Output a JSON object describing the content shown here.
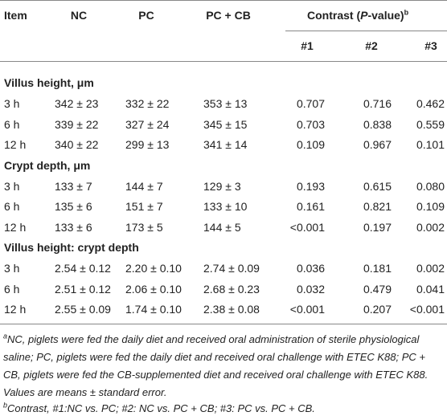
{
  "header": {
    "item": "Item",
    "columns": [
      "NC",
      "PC",
      "PC + CB"
    ],
    "contrast": {
      "parts": [
        "Contrast (",
        "P",
        "-value)"
      ],
      "note": "b"
    },
    "contrast_columns": [
      "#1",
      "#2",
      "#3"
    ]
  },
  "sections": [
    {
      "title": "Villus height, μm",
      "rows": [
        [
          "3 h",
          "342 ± 23",
          "332 ± 22",
          "353 ± 13",
          "0.707",
          "0.716",
          "0.462"
        ],
        [
          "6 h",
          "339 ± 22",
          "327 ± 24",
          "345 ± 15",
          "0.703",
          "0.838",
          "0.559"
        ],
        [
          "12 h",
          "340 ± 22",
          "299 ± 13",
          "341 ± 14",
          "0.109",
          "0.967",
          "0.101"
        ]
      ]
    },
    {
      "title": "Crypt depth, μm",
      "rows": [
        [
          "3 h",
          "133 ± 7",
          "144 ± 7",
          "129 ± 3",
          "0.193",
          "0.615",
          "0.080"
        ],
        [
          "6 h",
          "135 ± 6",
          "151 ± 7",
          "133 ± 10",
          "0.161",
          "0.821",
          "0.109"
        ],
        [
          "12 h",
          "133 ± 6",
          "173 ± 5",
          "144 ± 5",
          "<0.001",
          "0.197",
          "0.002"
        ]
      ]
    },
    {
      "title": "Villus height: crypt depth",
      "rows": [
        [
          "3 h",
          "2.54 ± 0.12",
          "2.20 ± 0.10",
          "2.74 ± 0.09",
          "0.036",
          "0.181",
          "0.002"
        ],
        [
          "6 h",
          "2.51 ± 0.12",
          "2.06 ± 0.10",
          "2.68 ± 0.23",
          "0.032",
          "0.479",
          "0.041"
        ],
        [
          "12 h",
          "2.55 ± 0.09",
          "1.74 ± 0.10",
          "2.38 ± 0.08",
          "<0.001",
          "0.207",
          "<0.001"
        ]
      ]
    }
  ],
  "footnotes": [
    {
      "mark": "a",
      "text": "NC, piglets were fed the daily diet and received oral administration of sterile physiological saline; PC, piglets were fed the daily diet and received oral challenge with ETEC K88; PC + CB, piglets were fed the CB-supplemented diet and received oral challenge with ETEC K88. Values are means ± standard error."
    },
    {
      "mark": "b",
      "text": "Contrast, #1:NC vs. PC; #2: NC vs. PC + CB; #3: PC vs. PC + CB."
    }
  ]
}
